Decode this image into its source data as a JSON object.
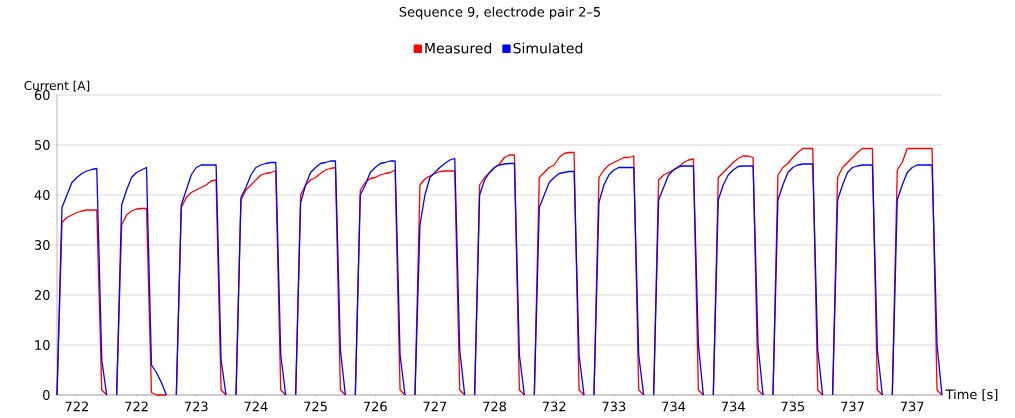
{
  "chart_data": {
    "type": "line",
    "title": "Sequence 9,  electrode pair 2–5",
    "xlabel": "Time [s]",
    "ylabel": "Current [A]",
    "categories": [
      null,
      null,
      null,
      null,
      "722",
      null,
      null,
      null,
      null,
      null,
      null,
      null,
      null,
      null,
      null,
      null,
      "722",
      null,
      null,
      null,
      null,
      null,
      null,
      null,
      null,
      null,
      null,
      null,
      "723",
      null,
      null,
      null,
      null,
      null,
      null,
      null,
      null,
      null,
      null,
      null,
      "724",
      null,
      null,
      null,
      null,
      null,
      null,
      null,
      null,
      null,
      null,
      null,
      "725",
      null,
      null,
      null,
      null,
      null,
      null,
      null,
      null,
      null,
      null,
      null,
      "726",
      null,
      null,
      null,
      null,
      null,
      null,
      null,
      null,
      null,
      null,
      null,
      "727",
      null,
      null,
      null,
      null,
      null,
      null,
      null,
      null,
      null,
      null,
      null,
      "728",
      null,
      null,
      null,
      null,
      null,
      null,
      null,
      null,
      null,
      null,
      null,
      "732",
      null,
      null,
      null,
      null,
      null,
      null,
      null,
      null,
      null,
      null,
      null,
      "733",
      null,
      null,
      null,
      null,
      null,
      null,
      null,
      null,
      null,
      null,
      null,
      "734",
      null,
      null,
      null,
      null,
      null,
      null,
      null,
      null,
      null,
      null,
      null,
      "734",
      null,
      null,
      null,
      null,
      null,
      null,
      null,
      null,
      null,
      null,
      null,
      "735",
      null,
      null,
      null,
      null,
      null,
      null,
      null,
      null,
      null,
      null,
      null,
      "737",
      null,
      null,
      null,
      null,
      null,
      null,
      null,
      null,
      null,
      null,
      null,
      "737",
      null,
      null,
      null,
      null,
      null,
      null,
      null
    ],
    "series": [
      {
        "name": "Measured",
        "color": "#ff0000",
        "values": [
          0,
          34.5,
          35.5,
          36,
          36.5,
          36.8,
          37,
          37,
          37,
          1,
          0,
          null,
          0,
          34,
          36,
          36.8,
          37.2,
          37.3,
          37.3,
          0.5,
          0,
          0,
          0,
          null,
          0,
          37.5,
          39.5,
          40.5,
          41,
          41.5,
          42,
          42.8,
          43,
          1,
          0,
          null,
          0,
          39,
          41,
          42,
          43,
          44,
          44.3,
          44.5,
          44.8,
          1,
          0,
          null,
          0,
          40,
          42,
          43,
          43.5,
          44.3,
          45,
          45.3,
          45.5,
          1,
          0,
          null,
          0,
          41,
          42.5,
          43.3,
          43.5,
          44,
          44.3,
          44.5,
          45,
          1,
          0,
          null,
          0,
          42,
          43.2,
          43.8,
          44.3,
          44.7,
          44.8,
          44.8,
          44.8,
          1,
          0,
          null,
          0,
          42,
          43.5,
          44.5,
          45.5,
          46.2,
          47.5,
          48,
          48,
          1,
          0,
          null,
          0,
          43.5,
          44.5,
          45.5,
          46,
          47.5,
          48.3,
          48.5,
          48.5,
          1,
          0,
          null,
          0,
          43.5,
          45,
          46,
          46.5,
          47,
          47.5,
          47.5,
          47.8,
          1,
          0,
          null,
          0,
          43,
          44,
          44.5,
          45,
          45.5,
          46.5,
          47,
          47.2,
          1,
          0,
          null,
          0,
          43.5,
          44.5,
          45.5,
          46.5,
          47.3,
          47.8,
          47.8,
          47.5,
          1,
          0,
          null,
          0,
          44,
          45.5,
          46.3,
          47.5,
          48.5,
          49.3,
          49.3,
          49.3,
          1,
          0,
          null,
          0,
          43.5,
          45.5,
          46.5,
          47.5,
          48.5,
          49.3,
          49.3,
          49.3,
          1,
          0,
          null,
          0,
          45,
          46.5,
          49.3,
          49.3,
          49.3,
          49.3,
          49.3,
          49.3,
          1,
          0,
          null
        ]
      },
      {
        "name": "Simulated",
        "color": "#0000ff",
        "values": [
          0,
          37.5,
          40,
          42.5,
          43.5,
          44.3,
          44.8,
          45.1,
          45.3,
          7,
          0,
          null,
          0,
          38,
          41,
          43.5,
          44.5,
          45,
          45.5,
          6,
          4.5,
          2.5,
          0,
          null,
          0,
          38,
          41,
          44,
          45.5,
          46,
          46,
          46,
          46,
          7,
          0,
          null,
          0,
          39.5,
          41.5,
          44,
          45.5,
          46,
          46.3,
          46.5,
          46.5,
          8,
          0,
          null,
          0,
          38.5,
          42,
          44.5,
          45.5,
          46.3,
          46.5,
          46.8,
          46.8,
          9,
          0,
          null,
          0,
          40,
          42,
          44.5,
          45.5,
          46.3,
          46.5,
          46.8,
          46.8,
          8,
          0,
          null,
          0,
          34,
          40,
          43.5,
          44.5,
          45.5,
          46.3,
          47,
          47.3,
          9,
          0,
          null,
          0,
          40,
          43,
          44.5,
          45.5,
          46,
          46.2,
          46.3,
          46.3,
          8,
          0,
          null,
          0,
          37.5,
          40,
          42.5,
          43.5,
          44.3,
          44.5,
          44.7,
          44.7,
          8,
          0,
          null,
          0,
          38.5,
          42,
          44,
          45,
          45.5,
          45.5,
          45.5,
          45.5,
          8,
          0,
          null,
          0,
          39,
          41.5,
          44,
          45,
          45.7,
          45.8,
          45.8,
          45.8,
          10,
          0,
          null,
          0,
          39,
          42,
          44,
          45,
          45.7,
          45.8,
          45.8,
          45.8,
          10,
          0,
          null,
          0,
          39,
          42,
          44.5,
          45.5,
          46,
          46.2,
          46.2,
          46.2,
          9,
          0,
          null,
          0,
          39,
          42,
          44.5,
          45.5,
          45.8,
          46,
          46,
          46,
          9,
          0,
          null,
          0,
          39,
          42,
          44.5,
          45.5,
          46,
          46,
          46,
          46,
          10,
          0,
          null
        ]
      }
    ],
    "ylim": [
      0,
      60
    ],
    "yticks": [
      0,
      10,
      20,
      30,
      40,
      50,
      60
    ],
    "grid": "y",
    "legend": "top",
    "marker": "none",
    "line_style": "solid"
  }
}
